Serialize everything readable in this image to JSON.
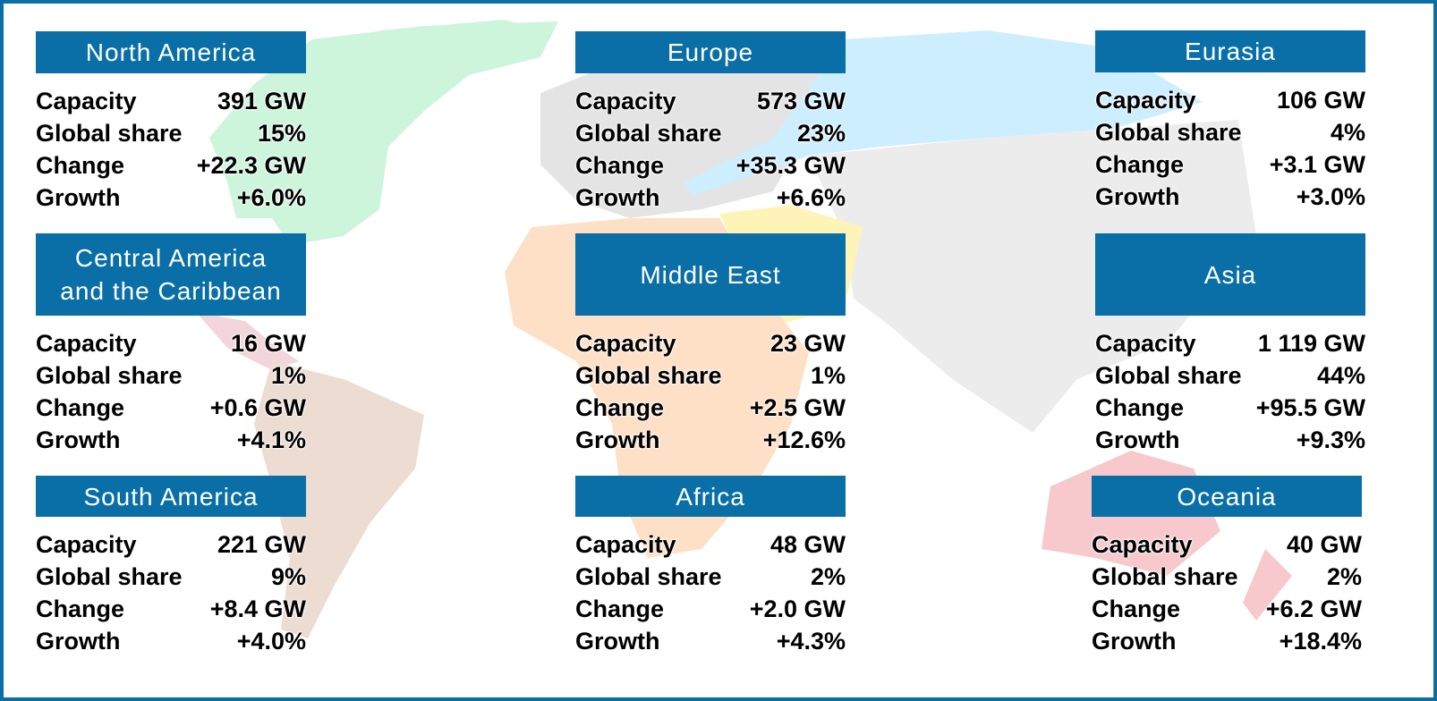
{
  "regions": [
    {
      "title": "North America",
      "rows": [
        [
          "Capacity",
          "391 GW"
        ],
        [
          "Global share",
          "15%"
        ],
        [
          "Change",
          "+22.3 GW"
        ],
        [
          "Growth",
          "+6.0%"
        ]
      ]
    },
    {
      "title": "Europe",
      "rows": [
        [
          "Capacity",
          "573 GW"
        ],
        [
          "Global share",
          "23%"
        ],
        [
          "Change",
          "+35.3 GW"
        ],
        [
          "Growth",
          "+6.6%"
        ]
      ]
    },
    {
      "title": "Eurasia",
      "rows": [
        [
          "Capacity",
          "106 GW"
        ],
        [
          "Global share",
          "4%"
        ],
        [
          "Change",
          "+3.1 GW"
        ],
        [
          "Growth",
          "+3.0%"
        ]
      ]
    },
    {
      "title": "Central America\nand the Caribbean",
      "rows": [
        [
          "Capacity",
          "16 GW"
        ],
        [
          "Global share",
          "1%"
        ],
        [
          "Change",
          "+0.6 GW"
        ],
        [
          "Growth",
          "+4.1%"
        ]
      ]
    },
    {
      "title": "Middle East",
      "rows": [
        [
          "Capacity",
          "23 GW"
        ],
        [
          "Global share",
          "1%"
        ],
        [
          "Change",
          "+2.5 GW"
        ],
        [
          "Growth",
          "+12.6%"
        ]
      ]
    },
    {
      "title": "Asia",
      "rows": [
        [
          "Capacity",
          "1 119 GW"
        ],
        [
          "Global share",
          "44%"
        ],
        [
          "Change",
          "+95.5 GW"
        ],
        [
          "Growth",
          "+9.3%"
        ]
      ]
    },
    {
      "title": "South America",
      "rows": [
        [
          "Capacity",
          "221 GW"
        ],
        [
          "Global share",
          "9%"
        ],
        [
          "Change",
          "+8.4 GW"
        ],
        [
          "Growth",
          "+4.0%"
        ]
      ]
    },
    {
      "title": "Africa",
      "rows": [
        [
          "Capacity",
          "48 GW"
        ],
        [
          "Global share",
          "2%"
        ],
        [
          "Change",
          "+2.0 GW"
        ],
        [
          "Growth",
          "+4.3%"
        ]
      ]
    },
    {
      "title": "Oceania",
      "rows": [
        [
          "Capacity",
          "40 GW"
        ],
        [
          "Global share",
          "2%"
        ],
        [
          "Change",
          "+6.2 GW"
        ],
        [
          "Growth",
          "+18.4%"
        ]
      ]
    }
  ]
}
